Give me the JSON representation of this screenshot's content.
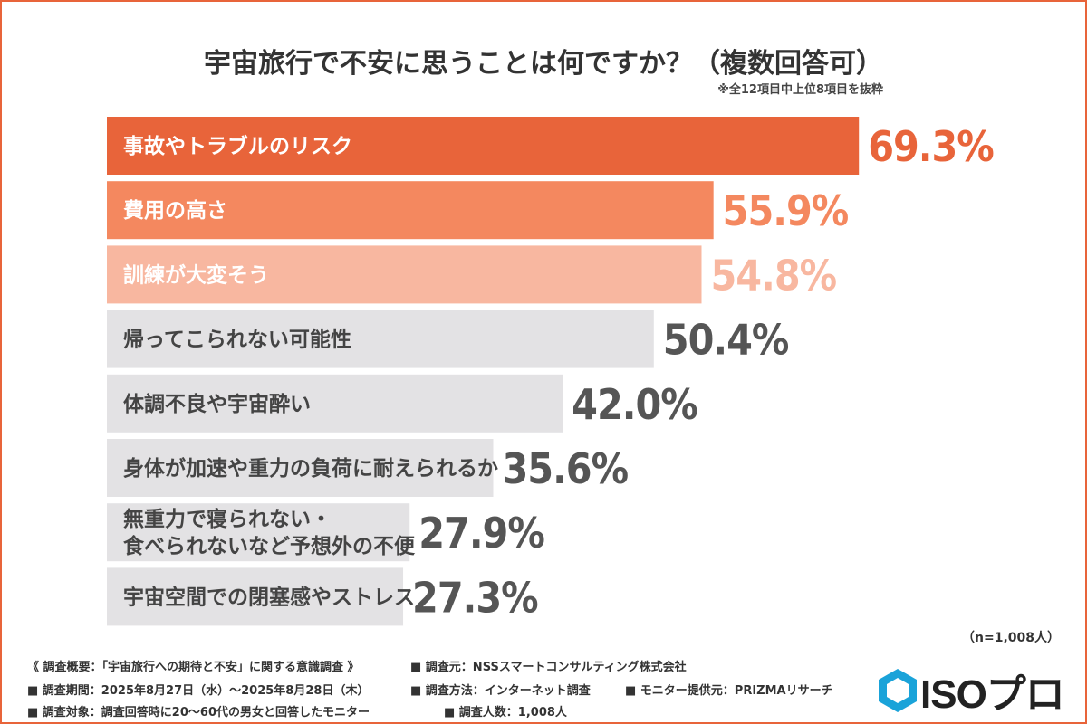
{
  "title": "宇宙旅行で不安に思うことは何ですか？（複数回答可）",
  "note": "※全12項目中上位8項目を抜粋",
  "sample_note": "（n=1,008人）",
  "footer": {
    "overview": "《 調査概要：「宇宙旅行への期待と不安」に関する意識調査 》",
    "org": "■ 調査元：NSSスマートコンサルティング株式会社",
    "period": "■ 調査期間：2025年8月27日（水）～2025年8月28日（木）",
    "method": "■ 調査方法：インターネット調査",
    "monitor": "■ モニター提供元：PRIZMAリサーチ",
    "target": "■ 調査対象：調査回答時に20～60代の男女と回答したモニター",
    "count": "■ 調査人数：1,008人"
  },
  "logo": {
    "text": "ISOプロ"
  },
  "colors": {
    "frame": "#e8643a",
    "top1": "#e8643a",
    "top2": "#f4885f",
    "top3": "#f8b7a0",
    "other_bar": "#e3e2e4",
    "other_text": "#444444",
    "other_value": "#555555"
  },
  "chart_data": {
    "type": "bar",
    "orientation": "horizontal",
    "unit": "%",
    "categories": [
      "事故やトラブルのリスク",
      "費用の高さ",
      "訓練が大変そう",
      "帰ってこられない可能性",
      "体調不良や宇宙酔い",
      "身体が加速や重力の負荷に耐えられるか",
      "無重力で寝られない・\n食べられないなど予想外の不便",
      "宇宙空間での閉塞感やストレス"
    ],
    "values": [
      69.3,
      55.9,
      54.8,
      50.4,
      42.0,
      35.6,
      27.9,
      27.3
    ],
    "value_labels": [
      "69.3%",
      "55.9%",
      "54.8%",
      "50.4%",
      "42.0%",
      "35.6%",
      "27.9%",
      "27.3%"
    ]
  }
}
